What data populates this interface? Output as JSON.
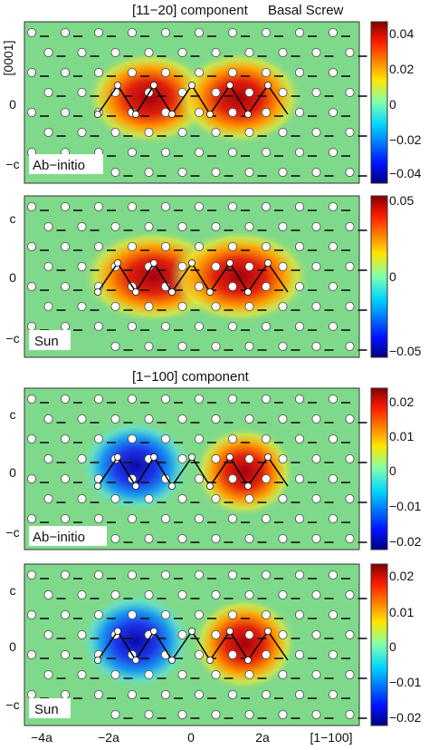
{
  "title_top": "[11−20] component",
  "title_top_right": "Basal Screw",
  "title_mid": "[1−100] component",
  "x_axis": {
    "ticks": [
      "−4a",
      "−2a",
      "0",
      "2a"
    ],
    "label": "[1−100]"
  },
  "panels": [
    {
      "tag": "Ab−initio",
      "y_ticks": [
        "[0001]",
        "0",
        "−c"
      ],
      "colorbar_ticks": [
        "0.04",
        "0.02",
        "0",
        "−0.02",
        "−0.04"
      ],
      "colorbar_range": [
        -0.045,
        0.045
      ]
    },
    {
      "tag": "Sun",
      "y_ticks": [
        "c",
        "0",
        "−c"
      ],
      "colorbar_ticks": [
        "0.05",
        "0",
        "−0.05"
      ],
      "colorbar_range": [
        -0.055,
        0.055
      ]
    },
    {
      "tag": "Ab−initio",
      "y_ticks": [
        "c",
        "0",
        "−c"
      ],
      "colorbar_ticks": [
        "0.02",
        "0.01",
        "0",
        "−0.01",
        "−0.02"
      ],
      "colorbar_range": [
        -0.024,
        0.024
      ]
    },
    {
      "tag": "Sun",
      "y_ticks": [
        "c",
        "0",
        "−c"
      ],
      "colorbar_ticks": [
        "0.02",
        "0.01",
        "0",
        "−0.01",
        "−0.02"
      ],
      "colorbar_range": [
        -0.024,
        0.024
      ]
    }
  ],
  "colors": {
    "background_field": "#7fd98a",
    "positive": "#b0101a",
    "negative": "#1c1ccf"
  }
}
